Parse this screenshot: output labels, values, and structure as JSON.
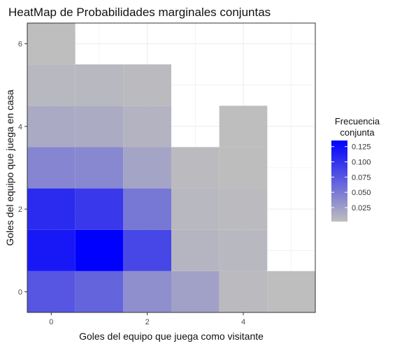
{
  "chart_data": {
    "type": "heatmap",
    "title": "HeatMap de Probabilidades marginales conjuntas",
    "xlabel": "Goles del equipo que juega como visitante",
    "ylabel": "Goles del equipo que juega en casa",
    "xlim": [
      -0.5,
      5.5
    ],
    "ylim": [
      -0.5,
      6.5
    ],
    "x_ticks": [
      0,
      2,
      4
    ],
    "y_ticks": [
      0,
      2,
      4,
      6
    ],
    "grid": true,
    "legend": {
      "title_line1": "Frecuencia",
      "title_line2": "conjunta",
      "labels": [
        "0.125",
        "0.100",
        "0.075",
        "0.050",
        "0.025"
      ],
      "values": [
        0.125,
        0.1,
        0.075,
        0.05,
        0.025
      ],
      "position": "right",
      "low_color": "#bebebe",
      "high_color": "#0000ff"
    },
    "color_low_value": 0.002,
    "color_high_value": 0.135,
    "cells": [
      {
        "x": 0,
        "y": 0,
        "value": 0.075
      },
      {
        "x": 1,
        "y": 0,
        "value": 0.065
      },
      {
        "x": 2,
        "y": 0,
        "value": 0.035
      },
      {
        "x": 3,
        "y": 0,
        "value": 0.022
      },
      {
        "x": 4,
        "y": 0,
        "value": 0.004
      },
      {
        "x": 5,
        "y": 0,
        "value": 0.002
      },
      {
        "x": 0,
        "y": 1,
        "value": 0.118
      },
      {
        "x": 1,
        "y": 1,
        "value": 0.135
      },
      {
        "x": 2,
        "y": 1,
        "value": 0.085
      },
      {
        "x": 3,
        "y": 1,
        "value": 0.008
      },
      {
        "x": 4,
        "y": 1,
        "value": 0.006
      },
      {
        "x": 0,
        "y": 2,
        "value": 0.105
      },
      {
        "x": 1,
        "y": 2,
        "value": 0.095
      },
      {
        "x": 2,
        "y": 2,
        "value": 0.052
      },
      {
        "x": 3,
        "y": 2,
        "value": 0.006
      },
      {
        "x": 4,
        "y": 2,
        "value": 0.005
      },
      {
        "x": 0,
        "y": 3,
        "value": 0.042
      },
      {
        "x": 1,
        "y": 3,
        "value": 0.04
      },
      {
        "x": 2,
        "y": 3,
        "value": 0.02
      },
      {
        "x": 3,
        "y": 3,
        "value": 0.004
      },
      {
        "x": 4,
        "y": 3,
        "value": 0.003
      },
      {
        "x": 0,
        "y": 4,
        "value": 0.016
      },
      {
        "x": 1,
        "y": 4,
        "value": 0.015
      },
      {
        "x": 2,
        "y": 4,
        "value": 0.01
      },
      {
        "x": 4,
        "y": 4,
        "value": 0.002
      },
      {
        "x": 0,
        "y": 5,
        "value": 0.006
      },
      {
        "x": 1,
        "y": 5,
        "value": 0.006
      },
      {
        "x": 2,
        "y": 5,
        "value": 0.005
      },
      {
        "x": 0,
        "y": 6,
        "value": 0.002
      }
    ]
  }
}
